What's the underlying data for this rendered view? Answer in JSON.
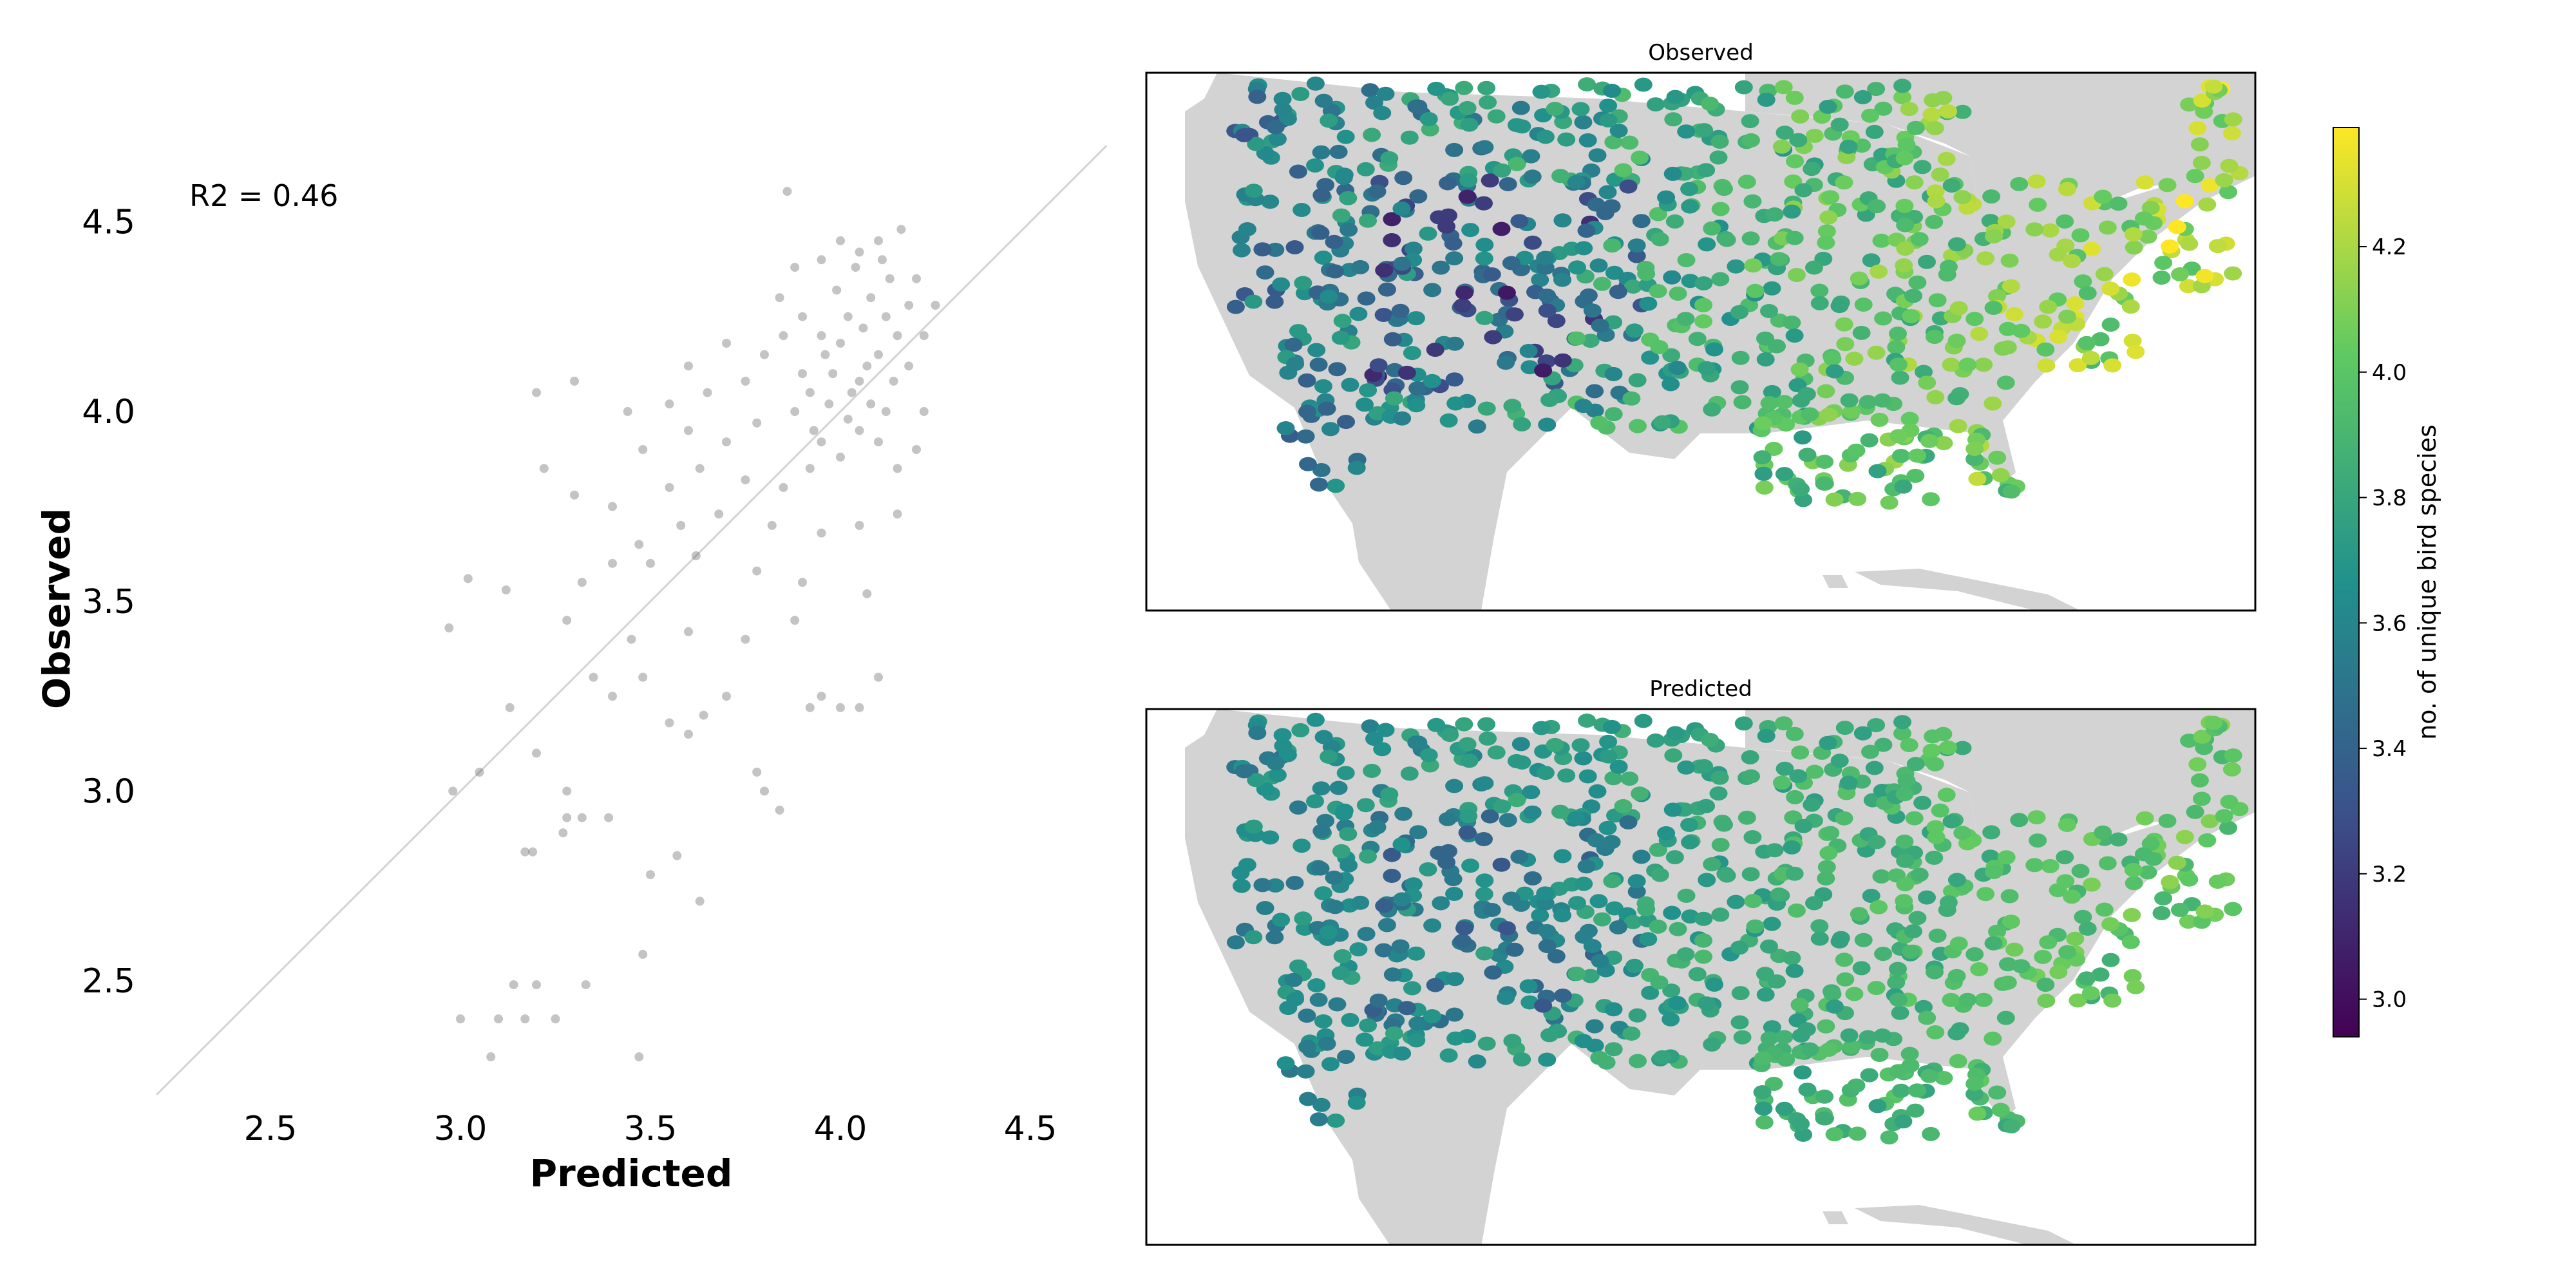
{
  "chart_data": [
    {
      "type": "scatter",
      "xlabel": "Predicted",
      "ylabel": "Observed",
      "xlim": [
        2.2,
        4.7
      ],
      "ylim": [
        2.2,
        4.75
      ],
      "xticks": [
        "2.5",
        "3.0",
        "3.5",
        "4.0",
        "4.5"
      ],
      "yticks": [
        "2.5",
        "3.0",
        "3.5",
        "4.0",
        "4.5"
      ],
      "annotation": "R2 = 0.46",
      "reference_line": "y = x",
      "point_color": "#555555",
      "reference_line_color": "#d3d3d3",
      "points": [
        [
          3.08,
          2.3
        ],
        [
          3.47,
          2.3
        ],
        [
          3.0,
          2.4
        ],
        [
          3.1,
          2.4
        ],
        [
          3.17,
          2.4
        ],
        [
          3.25,
          2.4
        ],
        [
          3.14,
          2.49
        ],
        [
          3.2,
          2.49
        ],
        [
          3.33,
          2.49
        ],
        [
          3.48,
          2.57
        ],
        [
          3.63,
          2.71
        ],
        [
          3.5,
          2.78
        ],
        [
          3.57,
          2.83
        ],
        [
          3.17,
          2.84
        ],
        [
          3.19,
          2.84
        ],
        [
          3.27,
          2.89
        ],
        [
          3.28,
          2.93
        ],
        [
          3.39,
          2.93
        ],
        [
          3.32,
          2.93
        ],
        [
          3.84,
          2.95
        ],
        [
          2.98,
          3.0
        ],
        [
          3.05,
          3.05
        ],
        [
          3.2,
          3.1
        ],
        [
          3.8,
          3.0
        ],
        [
          3.28,
          3.0
        ],
        [
          3.78,
          3.05
        ],
        [
          3.13,
          3.22
        ],
        [
          3.6,
          3.15
        ],
        [
          3.64,
          3.2
        ],
        [
          3.55,
          3.18
        ],
        [
          3.4,
          3.25
        ],
        [
          3.48,
          3.3
        ],
        [
          3.35,
          3.3
        ],
        [
          3.7,
          3.25
        ],
        [
          3.92,
          3.22
        ],
        [
          4.0,
          3.22
        ],
        [
          4.05,
          3.22
        ],
        [
          3.95,
          3.25
        ],
        [
          4.1,
          3.3
        ],
        [
          3.45,
          3.4
        ],
        [
          3.6,
          3.42
        ],
        [
          3.75,
          3.4
        ],
        [
          3.88,
          3.45
        ],
        [
          3.28,
          3.45
        ],
        [
          2.97,
          3.43
        ],
        [
          3.32,
          3.55
        ],
        [
          3.4,
          3.6
        ],
        [
          3.5,
          3.6
        ],
        [
          3.62,
          3.62
        ],
        [
          3.78,
          3.58
        ],
        [
          3.9,
          3.55
        ],
        [
          4.07,
          3.52
        ],
        [
          3.12,
          3.53
        ],
        [
          3.02,
          3.56
        ],
        [
          3.47,
          3.65
        ],
        [
          3.58,
          3.7
        ],
        [
          3.68,
          3.73
        ],
        [
          3.82,
          3.7
        ],
        [
          3.95,
          3.68
        ],
        [
          4.05,
          3.7
        ],
        [
          4.15,
          3.73
        ],
        [
          3.4,
          3.75
        ],
        [
          3.3,
          3.78
        ],
        [
          3.55,
          3.8
        ],
        [
          3.63,
          3.85
        ],
        [
          3.75,
          3.82
        ],
        [
          3.85,
          3.8
        ],
        [
          3.22,
          3.85
        ],
        [
          3.48,
          3.9
        ],
        [
          3.6,
          3.95
        ],
        [
          3.7,
          3.92
        ],
        [
          3.78,
          3.97
        ],
        [
          3.88,
          4.0
        ],
        [
          3.2,
          4.05
        ],
        [
          3.3,
          4.08
        ],
        [
          3.44,
          4.0
        ],
        [
          3.55,
          4.02
        ],
        [
          3.65,
          4.05
        ],
        [
          3.75,
          4.08
        ],
        [
          3.8,
          4.15
        ],
        [
          3.7,
          4.18
        ],
        [
          3.6,
          4.12
        ],
        [
          3.85,
          4.2
        ],
        [
          3.9,
          4.25
        ],
        [
          3.84,
          4.3
        ],
        [
          3.88,
          4.38
        ],
        [
          3.95,
          4.4
        ],
        [
          3.86,
          4.58
        ],
        [
          4.0,
          4.45
        ],
        [
          4.05,
          4.42
        ],
        [
          4.1,
          4.45
        ],
        [
          4.16,
          4.48
        ],
        [
          4.2,
          4.35
        ],
        [
          4.25,
          4.28
        ],
        [
          4.22,
          4.2
        ],
        [
          4.18,
          4.12
        ],
        [
          4.22,
          4.0
        ],
        [
          4.2,
          3.9
        ],
        [
          4.15,
          3.85
        ],
        [
          3.92,
          3.85
        ],
        [
          3.95,
          3.92
        ],
        [
          4.0,
          3.88
        ],
        [
          4.05,
          3.95
        ],
        [
          4.1,
          3.92
        ],
        [
          4.12,
          4.0
        ],
        [
          3.92,
          4.05
        ],
        [
          3.98,
          4.1
        ],
        [
          4.05,
          4.08
        ],
        [
          4.1,
          4.15
        ],
        [
          4.15,
          4.2
        ],
        [
          3.95,
          4.2
        ],
        [
          4.02,
          4.25
        ],
        [
          4.08,
          4.3
        ],
        [
          4.13,
          4.35
        ],
        [
          3.93,
          3.95
        ],
        [
          3.97,
          4.02
        ],
        [
          4.03,
          4.05
        ],
        [
          4.07,
          4.12
        ],
        [
          4.12,
          4.25
        ],
        [
          4.0,
          4.18
        ],
        [
          4.08,
          4.02
        ],
        [
          4.02,
          3.98
        ],
        [
          3.96,
          4.15
        ],
        [
          4.06,
          4.22
        ],
        [
          4.14,
          4.08
        ],
        [
          3.9,
          4.1
        ],
        [
          4.18,
          4.28
        ],
        [
          3.99,
          4.32
        ],
        [
          4.04,
          4.38
        ],
        [
          4.11,
          4.4
        ]
      ]
    },
    {
      "type": "map",
      "title": "Observed",
      "colormap": "viridis",
      "land_color": "#d3d3d3"
    },
    {
      "type": "map",
      "title": "Predicted",
      "colormap": "viridis",
      "land_color": "#d3d3d3"
    },
    {
      "type": "colorbar",
      "label": "no. of unique bird species",
      "range": [
        2.94,
        4.39
      ],
      "ticks": [
        "3.0",
        "3.2",
        "3.4",
        "3.6",
        "3.8",
        "4.0",
        "4.2"
      ],
      "tick_values": [
        3.0,
        3.2,
        3.4,
        3.6,
        3.8,
        4.0,
        4.2
      ],
      "colors": [
        "#440154",
        "#3b528b",
        "#21918c",
        "#5ec962",
        "#fde725"
      ]
    }
  ]
}
